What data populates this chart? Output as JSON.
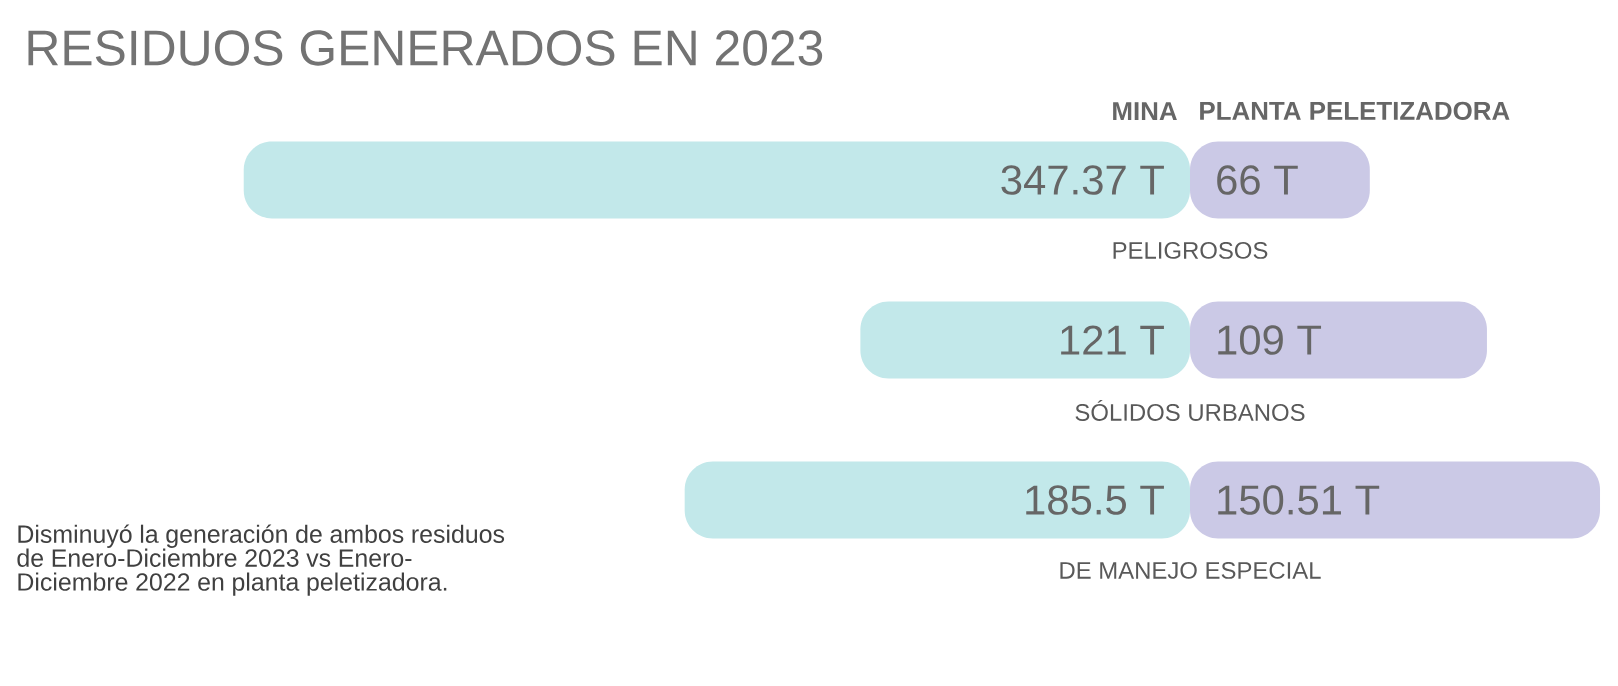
{
  "chart_data": [
    {
      "type": "bar",
      "orientation": "horizontal",
      "title": "RESIDUOS GENERADOS EN 2023",
      "categories": [
        "PELIGROSOS",
        "SÓLIDOS URBANOS",
        "DE MANEJO ESPECIAL"
      ],
      "series": [
        {
          "name": "MINA",
          "color": "#c2e8ea",
          "values": [
            347.37,
            121,
            185.5
          ],
          "value_labels": [
            "347.37 T",
            "121 T",
            "185.5 T"
          ]
        }
      ],
      "annotations": [
        "Disminuyó la generación de ambos residuos de Enero-Diciembre 2023 vs Enero-Diciembre 2022 en planta peletizadora."
      ]
    },
    {
      "type": "bar",
      "orientation": "horizontal",
      "categories": [
        null,
        null,
        null
      ],
      "series": [
        {
          "name": "PLANTA PELETIZADORA",
          "color": "#cbc9e6",
          "values": [
            66,
            109,
            150.51
          ],
          "value_labels": [
            "66 T",
            "109 T",
            "150.51 T"
          ]
        }
      ]
    }
  ]
}
